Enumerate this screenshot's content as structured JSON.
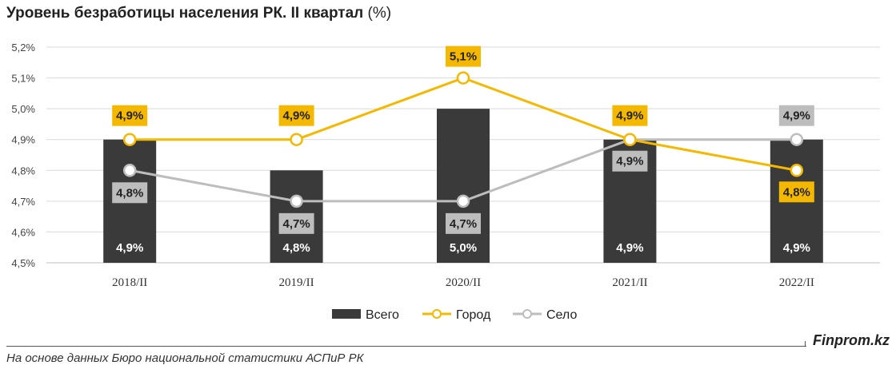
{
  "title": {
    "main": "Уровень безработицы населения РК. II квартал",
    "unit": "(%)"
  },
  "chart_data": {
    "type": "bar",
    "categories": [
      "2018/II",
      "2019/II",
      "2020/II",
      "2021/II",
      "2022/II"
    ],
    "ylim": [
      4.5,
      5.2
    ],
    "yticks": [
      "4,5%",
      "4,6%",
      "4,7%",
      "4,8%",
      "4,9%",
      "5,0%",
      "5,1%",
      "5,2%"
    ],
    "grid": true,
    "legend_position": "bottom",
    "series": [
      {
        "name": "Всего",
        "kind": "bar",
        "color": "#3a3a3a",
        "values": [
          4.9,
          4.8,
          5.0,
          4.9,
          4.9
        ],
        "labels": [
          "4,9%",
          "4,8%",
          "5,0%",
          "4,9%",
          "4,9%"
        ]
      },
      {
        "name": "Город",
        "kind": "line",
        "color": "#f5b800",
        "values": [
          4.9,
          4.9,
          5.1,
          4.9,
          4.8
        ],
        "labels": [
          "4,9%",
          "4,9%",
          "5,1%",
          "4,9%",
          "4,8%"
        ]
      },
      {
        "name": "Село",
        "kind": "line",
        "color": "#bdbdbd",
        "values": [
          4.8,
          4.7,
          4.7,
          4.9,
          4.9
        ],
        "labels": [
          "4,8%",
          "4,7%",
          "4,7%",
          "4,9%",
          "4,9%"
        ]
      }
    ]
  },
  "footer": {
    "source": "На основе данных Бюро национальной статистики АСПиР РК",
    "brand": "Finprom.kz"
  }
}
